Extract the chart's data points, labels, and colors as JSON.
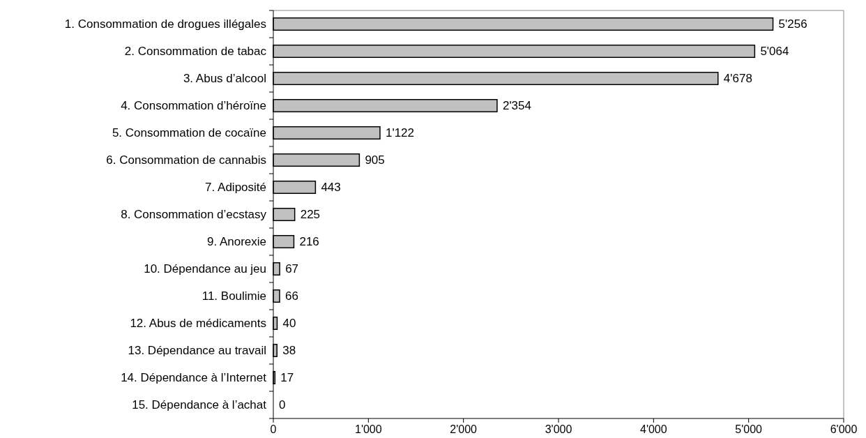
{
  "chart_data": {
    "type": "bar",
    "orientation": "horizontal",
    "categories": [
      "1. Consommation de drogues illégales",
      "2. Consommation de tabac",
      "3. Abus d’alcool",
      "4. Consommation d’héroïne",
      "5. Consommation de cocaïne",
      "6. Consommation de cannabis",
      "7. Adiposité",
      "8. Consommation d’ecstasy",
      "9. Anorexie",
      "10. Dépendance au jeu",
      "11. Boulimie",
      "12. Abus de médicaments",
      "13. Dépendance au travail",
      "14. Dépendance à l’Internet",
      "15. Dépendance à l’achat"
    ],
    "values": [
      5256,
      5064,
      4678,
      2354,
      1122,
      905,
      443,
      225,
      216,
      67,
      66,
      40,
      38,
      17,
      0
    ],
    "value_labels": [
      "5'256",
      "5'064",
      "4'678",
      "2'354",
      "1'122",
      "905",
      "443",
      "225",
      "216",
      "67",
      "66",
      "40",
      "38",
      "17",
      "0"
    ],
    "color": "#c0c0c0",
    "xlim": [
      0,
      6000
    ],
    "xticks": [
      0,
      {
        "value": 1000,
        "label": "1'000"
      },
      {
        "value": 2000,
        "label": "2'000"
      },
      {
        "value": 3000,
        "label": "3'000"
      },
      {
        "value": 4000,
        "label": "4'000"
      },
      {
        "value": 5000,
        "label": "5'000"
      },
      {
        "value": 6000,
        "label": "6'000"
      }
    ],
    "grid": false
  }
}
